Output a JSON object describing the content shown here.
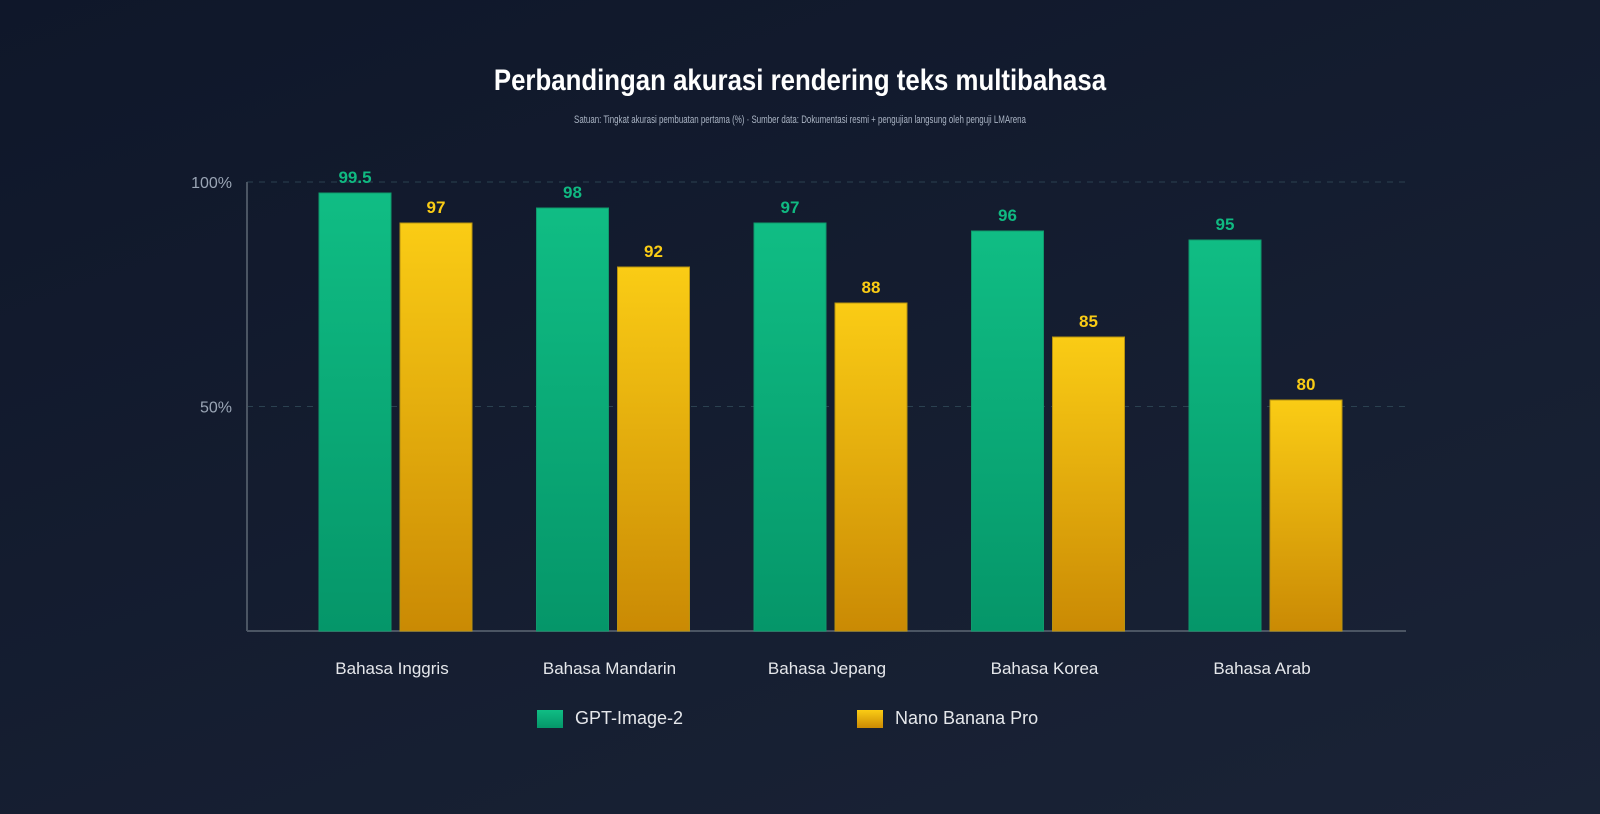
{
  "chart_data": {
    "type": "bar",
    "title": "Perbandingan akurasi rendering teks multibahasa",
    "subtitle": "Satuan: Tingkat akurasi pembuatan pertama (%) · Sumber data: Dokumentasi resmi + pengujian langsung oleh penguji LMArena",
    "categories": [
      "Bahasa Inggris",
      "Bahasa Mandarin",
      "Bahasa Jepang",
      "Bahasa Korea",
      "Bahasa Arab"
    ],
    "series": [
      {
        "name": "GPT-Image-2",
        "values": [
          99.5,
          98,
          97,
          96,
          95
        ],
        "color": "#10b981"
      },
      {
        "name": "Nano Banana Pro",
        "values": [
          97,
          92,
          88,
          85,
          80
        ],
        "color": "#facc15"
      }
    ],
    "y_ticks": [
      "100%",
      "50%"
    ],
    "grid": true,
    "legend_position": "bottom"
  }
}
